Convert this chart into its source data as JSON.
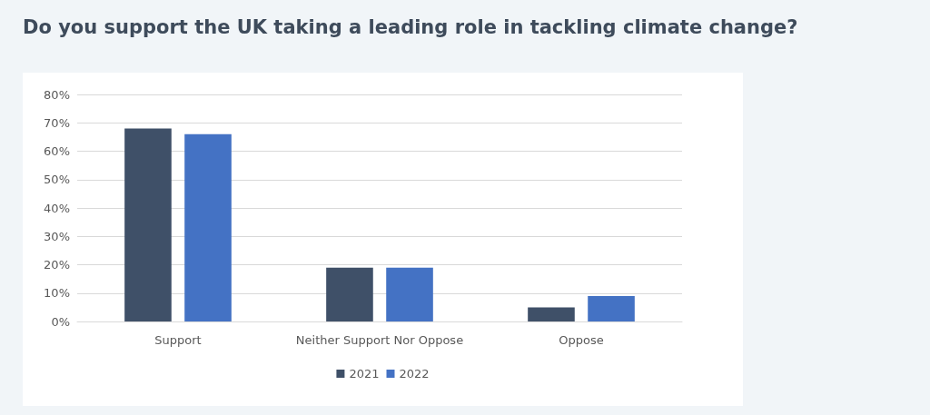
{
  "chart_data": {
    "type": "bar",
    "title": "Do you support the UK taking a leading role in tackling climate change?",
    "categories": [
      "Support",
      "Neither Support Nor Oppose",
      "Oppose"
    ],
    "series": [
      {
        "name": "2021",
        "color": "#3f5068",
        "values": [
          68,
          19,
          5
        ]
      },
      {
        "name": "2022",
        "color": "#4472c4",
        "values": [
          66,
          19,
          9
        ]
      }
    ],
    "ylim": [
      0,
      80
    ],
    "yticks": [
      {
        "value": 0,
        "label": "0%"
      },
      {
        "value": 10,
        "label": "10%"
      },
      {
        "value": 20,
        "label": "20%"
      },
      {
        "value": 30,
        "label": "30%"
      },
      {
        "value": 40,
        "label": "40%"
      },
      {
        "value": 50,
        "label": "50%"
      },
      {
        "value": 60,
        "label": "60%"
      },
      {
        "value": 70,
        "label": "70%"
      },
      {
        "value": 80,
        "label": "80%"
      }
    ],
    "grid": "y",
    "legend": "bottom"
  }
}
